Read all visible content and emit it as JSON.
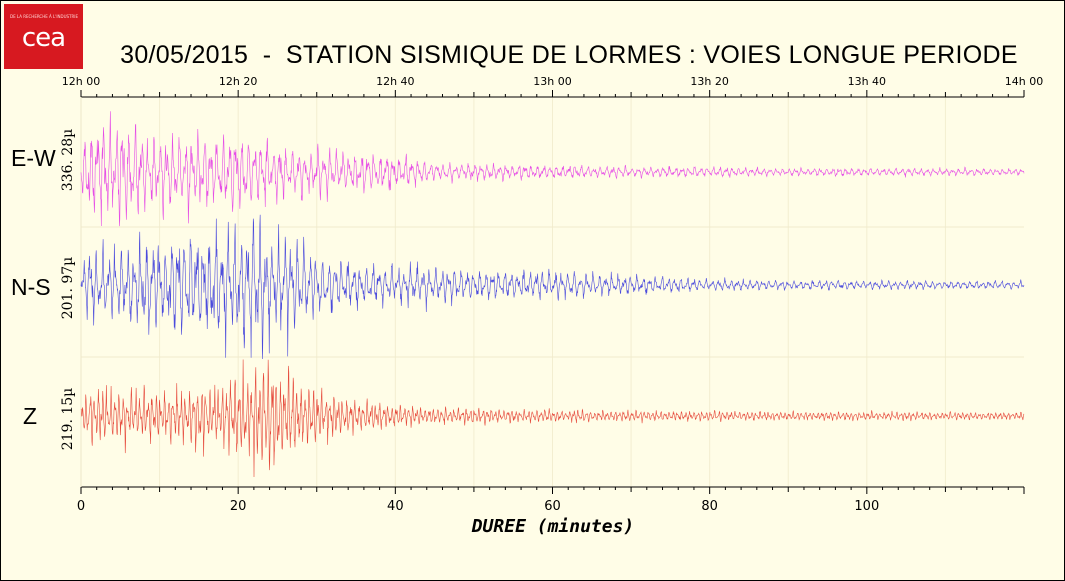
{
  "logo": {
    "text": "cea",
    "small_text": "DE LA RECHERCHE À L'INDUSTRIE"
  },
  "chart_data": {
    "type": "line",
    "title": "30/05/2015  -  STATION SISMIQUE DE LORMES : VOIES LONGUE PERIODE",
    "xlabel": "DUREE (minutes)",
    "xlim": [
      0,
      120
    ],
    "x_ticks": [
      0,
      20,
      40,
      60,
      80,
      100
    ],
    "x_ticks_top": [
      "12h 00",
      "12h 20",
      "12h 40",
      "13h 00",
      "13h 20",
      "13h 40",
      "14h 00"
    ],
    "grid": true,
    "series": [
      {
        "name": "E-W",
        "scale_label": "336. 28µ",
        "color": "#e64ee6",
        "envelope": {
          "minutes": [
            0,
            1,
            3,
            6,
            10,
            15,
            20,
            25,
            30,
            35,
            40,
            45,
            55,
            70,
            90,
            120
          ],
          "amplitude": [
            0.3,
            0.85,
            0.95,
            0.9,
            0.6,
            0.62,
            0.7,
            0.5,
            0.4,
            0.35,
            0.3,
            0.18,
            0.12,
            0.1,
            0.07,
            0.06
          ]
        }
      },
      {
        "name": "N-S",
        "scale_label": "201. 97µ",
        "color": "#4b4bdc",
        "envelope": {
          "minutes": [
            0,
            1,
            5,
            10,
            15,
            18,
            22,
            26,
            30,
            35,
            40,
            45,
            50,
            55,
            60,
            65,
            70,
            80,
            90,
            120
          ],
          "amplitude": [
            0.3,
            0.6,
            0.6,
            0.75,
            0.85,
            0.9,
            0.95,
            0.8,
            0.5,
            0.35,
            0.3,
            0.3,
            0.22,
            0.2,
            0.22,
            0.17,
            0.15,
            0.09,
            0.07,
            0.06
          ]
        }
      },
      {
        "name": "Z",
        "scale_label": "219. 15µ",
        "color": "#e64a3c",
        "envelope": {
          "minutes": [
            0,
            2,
            8,
            14,
            18,
            20,
            22,
            24,
            27,
            30,
            34,
            40,
            45,
            55,
            70,
            90,
            120
          ],
          "amplitude": [
            0.3,
            0.45,
            0.4,
            0.45,
            0.55,
            0.7,
            0.8,
            0.95,
            0.6,
            0.45,
            0.28,
            0.18,
            0.13,
            0.1,
            0.08,
            0.07,
            0.06
          ]
        }
      }
    ]
  }
}
